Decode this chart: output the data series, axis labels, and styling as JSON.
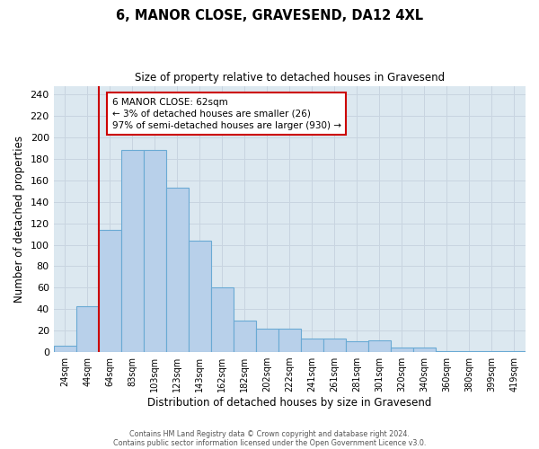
{
  "title": "6, MANOR CLOSE, GRAVESEND, DA12 4XL",
  "subtitle": "Size of property relative to detached houses in Gravesend",
  "xlabel": "Distribution of detached houses by size in Gravesend",
  "ylabel": "Number of detached properties",
  "bin_labels": [
    "24sqm",
    "44sqm",
    "64sqm",
    "83sqm",
    "103sqm",
    "123sqm",
    "143sqm",
    "162sqm",
    "182sqm",
    "202sqm",
    "222sqm",
    "241sqm",
    "261sqm",
    "281sqm",
    "301sqm",
    "320sqm",
    "340sqm",
    "360sqm",
    "380sqm",
    "399sqm",
    "419sqm"
  ],
  "bar_values": [
    6,
    43,
    114,
    188,
    188,
    153,
    104,
    60,
    29,
    22,
    22,
    13,
    13,
    10,
    11,
    4,
    4,
    1,
    1,
    1,
    1
  ],
  "bar_color": "#b8d0ea",
  "bar_edge_color": "#6aaad4",
  "bar_edge_width": 0.8,
  "vline_x_pos": 1.5,
  "vline_color": "#cc0000",
  "vline_linewidth": 1.5,
  "annotation_text": "6 MANOR CLOSE: 62sqm\n← 3% of detached houses are smaller (26)\n97% of semi-detached houses are larger (930) →",
  "annotation_box_edge_color": "#cc0000",
  "annotation_box_face_color": "white",
  "ylim": [
    0,
    248
  ],
  "yticks": [
    0,
    20,
    40,
    60,
    80,
    100,
    120,
    140,
    160,
    180,
    200,
    220,
    240
  ],
  "grid_color": "#c8d4e0",
  "background_color": "#dce8f0",
  "footer_line1": "Contains HM Land Registry data © Crown copyright and database right 2024.",
  "footer_line2": "Contains public sector information licensed under the Open Government Licence v3.0."
}
